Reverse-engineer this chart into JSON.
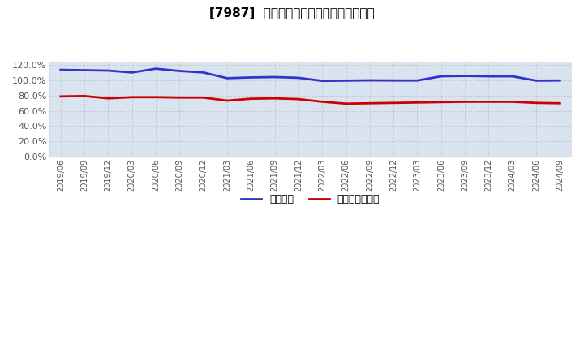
{
  "title": "[7987]  固定比率、固定長期適合率の推移",
  "x_labels": [
    "2019/06",
    "2019/09",
    "2019/12",
    "2020/03",
    "2020/06",
    "2020/09",
    "2020/12",
    "2021/03",
    "2021/06",
    "2021/09",
    "2021/12",
    "2022/03",
    "2022/06",
    "2022/09",
    "2022/12",
    "2023/03",
    "2023/06",
    "2023/09",
    "2023/12",
    "2024/03",
    "2024/06",
    "2024/09"
  ],
  "fixed_ratio": [
    114.0,
    113.5,
    113.0,
    110.5,
    115.5,
    112.5,
    110.5,
    103.0,
    104.0,
    104.5,
    103.5,
    99.5,
    99.8,
    100.2,
    100.0,
    100.0,
    105.5,
    106.0,
    105.5,
    105.5,
    99.8,
    100.0
  ],
  "fixed_long_ratio": [
    79.0,
    79.5,
    76.5,
    78.0,
    78.0,
    77.5,
    77.5,
    73.5,
    76.0,
    76.5,
    75.5,
    72.0,
    69.5,
    70.0,
    70.5,
    71.0,
    71.5,
    72.0,
    72.0,
    72.0,
    70.5,
    70.0
  ],
  "fixed_ratio_color": "#3333cc",
  "fixed_long_ratio_color": "#cc0000",
  "background_color": "#ffffff",
  "plot_background_color": "#d9e4f0",
  "grid_color": "#bbbbbb",
  "ylim": [
    0,
    125
  ],
  "yticks": [
    0.0,
    20.0,
    40.0,
    60.0,
    80.0,
    100.0,
    120.0
  ],
  "legend_fixed": "固定比率",
  "legend_fixed_long": "固定長期適合率",
  "line_width": 2.0
}
